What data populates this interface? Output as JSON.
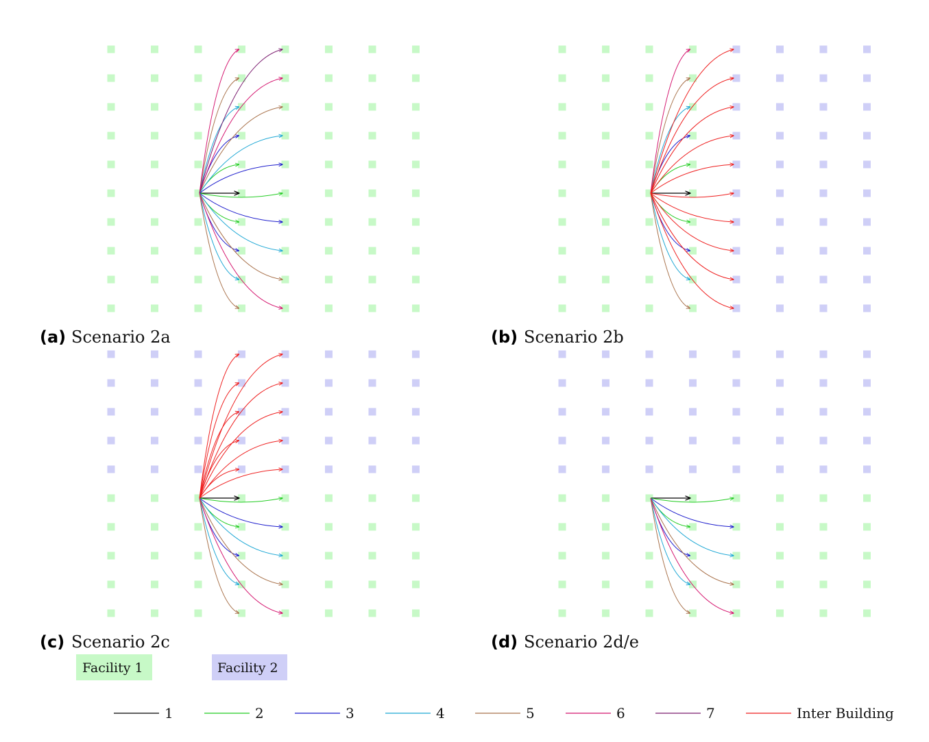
{
  "colors": {
    "facility1": "#c7f9c7",
    "facility2": "#cfcff7",
    "route_colors": {
      "1": "#000000",
      "2": "#22cc22",
      "3": "#1a1acc",
      "4": "#1aa6d4",
      "5": "#a8714a",
      "6": "#d4146e",
      "7": "#7a1a6e",
      "inter": "#ee1c1c"
    }
  },
  "panels": [
    {
      "id": "a",
      "caption_letter": "(a)",
      "caption_text": "Scenario 2a",
      "columns": 8,
      "rows": 10,
      "origin_cell": [
        2,
        5
      ],
      "facility2_cells": [],
      "routes": [
        {
          "to": [
            3,
            5
          ],
          "kind": "1"
        },
        {
          "to": [
            4,
            5
          ],
          "kind": "2"
        },
        {
          "to": [
            3,
            6
          ],
          "kind": "2"
        },
        {
          "to": [
            3,
            4
          ],
          "kind": "2"
        },
        {
          "to": [
            4,
            6
          ],
          "kind": "3"
        },
        {
          "to": [
            4,
            4
          ],
          "kind": "3"
        },
        {
          "to": [
            3,
            7
          ],
          "kind": "3"
        },
        {
          "to": [
            3,
            3
          ],
          "kind": "3"
        },
        {
          "to": [
            4,
            7
          ],
          "kind": "4"
        },
        {
          "to": [
            4,
            3
          ],
          "kind": "4"
        },
        {
          "to": [
            3,
            8
          ],
          "kind": "4"
        },
        {
          "to": [
            3,
            2
          ],
          "kind": "4"
        },
        {
          "to": [
            4,
            8
          ],
          "kind": "5"
        },
        {
          "to": [
            4,
            2
          ],
          "kind": "5"
        },
        {
          "to": [
            3,
            9
          ],
          "kind": "5"
        },
        {
          "to": [
            3,
            1
          ],
          "kind": "5"
        },
        {
          "to": [
            4,
            9
          ],
          "kind": "6"
        },
        {
          "to": [
            4,
            1
          ],
          "kind": "6"
        },
        {
          "to": [
            3,
            0
          ],
          "kind": "6"
        },
        {
          "to": [
            4,
            0
          ],
          "kind": "7"
        }
      ]
    },
    {
      "id": "b",
      "caption_letter": "(b)",
      "caption_text": "Scenario 2b",
      "columns": 8,
      "rows": 10,
      "origin_cell": [
        2,
        5
      ],
      "facility2_cells": "cols_4_to_7",
      "routes": [
        {
          "to": [
            3,
            5
          ],
          "kind": "1"
        },
        {
          "to": [
            3,
            6
          ],
          "kind": "2"
        },
        {
          "to": [
            3,
            4
          ],
          "kind": "2"
        },
        {
          "to": [
            3,
            7
          ],
          "kind": "3"
        },
        {
          "to": [
            3,
            3
          ],
          "kind": "3"
        },
        {
          "to": [
            3,
            8
          ],
          "kind": "4"
        },
        {
          "to": [
            3,
            2
          ],
          "kind": "4"
        },
        {
          "to": [
            3,
            9
          ],
          "kind": "5"
        },
        {
          "to": [
            3,
            1
          ],
          "kind": "5"
        },
        {
          "to": [
            3,
            0
          ],
          "kind": "6"
        },
        {
          "to": [
            4,
            0
          ],
          "kind": "inter"
        },
        {
          "to": [
            4,
            1
          ],
          "kind": "inter"
        },
        {
          "to": [
            4,
            2
          ],
          "kind": "inter"
        },
        {
          "to": [
            4,
            3
          ],
          "kind": "inter"
        },
        {
          "to": [
            4,
            4
          ],
          "kind": "inter"
        },
        {
          "to": [
            4,
            5
          ],
          "kind": "inter"
        },
        {
          "to": [
            4,
            6
          ],
          "kind": "inter"
        },
        {
          "to": [
            4,
            7
          ],
          "kind": "inter"
        },
        {
          "to": [
            4,
            8
          ],
          "kind": "inter"
        },
        {
          "to": [
            4,
            9
          ],
          "kind": "inter"
        }
      ]
    },
    {
      "id": "c",
      "caption_letter": "(c)",
      "caption_text": "Scenario 2c",
      "columns": 8,
      "rows": 10,
      "origin_cell": [
        2,
        5
      ],
      "facility2_cells": "rows_0_to_4",
      "routes": [
        {
          "to": [
            3,
            5
          ],
          "kind": "1"
        },
        {
          "to": [
            4,
            5
          ],
          "kind": "2"
        },
        {
          "to": [
            3,
            6
          ],
          "kind": "2"
        },
        {
          "to": [
            4,
            6
          ],
          "kind": "3"
        },
        {
          "to": [
            3,
            7
          ],
          "kind": "3"
        },
        {
          "to": [
            4,
            7
          ],
          "kind": "4"
        },
        {
          "to": [
            3,
            8
          ],
          "kind": "4"
        },
        {
          "to": [
            4,
            8
          ],
          "kind": "5"
        },
        {
          "to": [
            3,
            9
          ],
          "kind": "5"
        },
        {
          "to": [
            4,
            9
          ],
          "kind": "6"
        },
        {
          "to": [
            3,
            4
          ],
          "kind": "inter"
        },
        {
          "to": [
            4,
            4
          ],
          "kind": "inter"
        },
        {
          "to": [
            3,
            3
          ],
          "kind": "inter"
        },
        {
          "to": [
            4,
            3
          ],
          "kind": "inter"
        },
        {
          "to": [
            3,
            2
          ],
          "kind": "inter"
        },
        {
          "to": [
            4,
            2
          ],
          "kind": "inter"
        },
        {
          "to": [
            3,
            1
          ],
          "kind": "inter"
        },
        {
          "to": [
            4,
            1
          ],
          "kind": "inter"
        },
        {
          "to": [
            3,
            0
          ],
          "kind": "inter"
        },
        {
          "to": [
            4,
            0
          ],
          "kind": "inter"
        }
      ]
    },
    {
      "id": "d",
      "caption_letter": "(d)",
      "caption_text": "Scenario 2d/e",
      "columns": 8,
      "rows": 10,
      "origin_cell": [
        2,
        5
      ],
      "facility2_cells": "rows_0_to_4",
      "routes": [
        {
          "to": [
            3,
            5
          ],
          "kind": "1"
        },
        {
          "to": [
            4,
            5
          ],
          "kind": "2"
        },
        {
          "to": [
            3,
            6
          ],
          "kind": "2"
        },
        {
          "to": [
            4,
            6
          ],
          "kind": "3"
        },
        {
          "to": [
            3,
            7
          ],
          "kind": "3"
        },
        {
          "to": [
            4,
            7
          ],
          "kind": "4"
        },
        {
          "to": [
            3,
            8
          ],
          "kind": "4"
        },
        {
          "to": [
            4,
            8
          ],
          "kind": "5"
        },
        {
          "to": [
            3,
            9
          ],
          "kind": "5"
        },
        {
          "to": [
            4,
            9
          ],
          "kind": "6"
        }
      ]
    }
  ],
  "facility_legend": [
    {
      "label": "Facility 1",
      "color_key": "facility1"
    },
    {
      "label": "Facility 2",
      "color_key": "facility2"
    }
  ],
  "legend": [
    {
      "label": "1",
      "kind": "1"
    },
    {
      "label": "2",
      "kind": "2"
    },
    {
      "label": "3",
      "kind": "3"
    },
    {
      "label": "4",
      "kind": "4"
    },
    {
      "label": "5",
      "kind": "5"
    },
    {
      "label": "6",
      "kind": "6"
    },
    {
      "label": "7",
      "kind": "7"
    },
    {
      "label": "Inter Building",
      "kind": "inter"
    }
  ]
}
